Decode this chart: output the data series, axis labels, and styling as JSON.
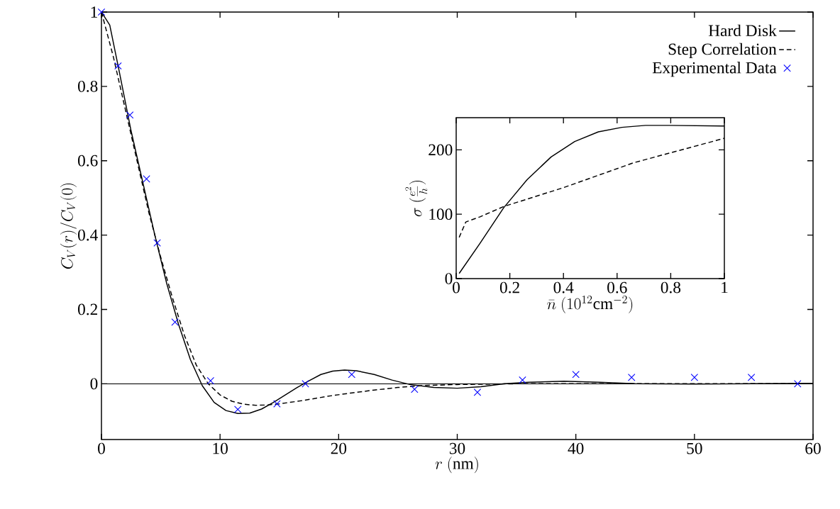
{
  "chart_data": [
    {
      "type": "line",
      "xlabel": "r\\ (\\mathrm{nm})",
      "ylabel": "C_V(r)/C_V(0)",
      "xlim": [
        0,
        60
      ],
      "ylim": [
        -0.15,
        1
      ],
      "xticks": [
        0,
        10,
        20,
        30,
        40,
        50,
        60
      ],
      "yticks": [
        0,
        0.2,
        0.4,
        0.6,
        0.8,
        1
      ],
      "legend": "top right",
      "ref_lines": [
        {
          "axis": "y",
          "value": 0,
          "color": "#000000"
        }
      ],
      "series": [
        {
          "name": "Hard Disk",
          "color": "#000000",
          "line_style": "solid",
          "x": [
            0,
            0.7,
            1.5,
            2.5,
            3.5,
            4.5,
            5.5,
            6.5,
            7.5,
            8.5,
            9.5,
            10.5,
            11.5,
            12.5,
            13.5,
            14.5,
            15.5,
            16.5,
            17.5,
            18.5,
            19.5,
            20.5,
            21.5,
            23,
            24.5,
            26,
            28,
            30,
            32,
            34,
            36,
            39,
            42,
            45,
            50,
            55,
            60
          ],
          "values": [
            1,
            0.965,
            0.84,
            0.68,
            0.54,
            0.4,
            0.27,
            0.16,
            0.065,
            -0.005,
            -0.05,
            -0.072,
            -0.08,
            -0.079,
            -0.068,
            -0.05,
            -0.03,
            -0.01,
            0.008,
            0.025,
            0.034,
            0.037,
            0.035,
            0.025,
            0.01,
            -0.002,
            -0.01,
            -0.012,
            -0.008,
            0,
            0.004,
            0.007,
            0.004,
            0,
            -0.001,
            0,
            0.001
          ]
        },
        {
          "name": "Step Correlation",
          "color": "#000000",
          "line_style": "dashed",
          "x": [
            0,
            1,
            2,
            3,
            4,
            5,
            6,
            7,
            8,
            9,
            10,
            11,
            12,
            13,
            14,
            15,
            17,
            19,
            21,
            23,
            25,
            27,
            30,
            35,
            60
          ],
          "values": [
            1,
            0.88,
            0.74,
            0.6,
            0.46,
            0.34,
            0.23,
            0.13,
            0.05,
            0.0,
            -0.03,
            -0.047,
            -0.055,
            -0.058,
            -0.057,
            -0.054,
            -0.045,
            -0.034,
            -0.025,
            -0.017,
            -0.01,
            -0.005,
            -0.002,
            0,
            0
          ]
        },
        {
          "name": "Experimental Data",
          "type": "scatter",
          "color": "#0000ff",
          "marker": "cross",
          "x": [
            0,
            1.4,
            2.4,
            3.8,
            4.7,
            6.2,
            9.2,
            11.5,
            14.8,
            17.2,
            21.1,
            26.4,
            31.7,
            35.5,
            40.0,
            44.7,
            50.0,
            54.8,
            58.7
          ],
          "values": [
            1.0,
            0.855,
            0.723,
            0.551,
            0.379,
            0.166,
            0.008,
            -0.069,
            -0.054,
            0.0,
            0.025,
            -0.015,
            -0.023,
            0.01,
            0.025,
            0.017,
            0.017,
            0.017,
            0.0
          ]
        }
      ]
    },
    {
      "type": "line",
      "xlabel": "\\bar{n}\\ (10^{12}\\mathrm{cm}^{-2})",
      "ylabel": "\\sigma\\ (\\frac{e^2}{h})",
      "xlim": [
        0,
        1
      ],
      "ylim": [
        0,
        250
      ],
      "xticks": [
        0,
        0.2,
        0.4,
        0.6,
        0.8,
        1
      ],
      "yticks": [
        0,
        100,
        200
      ],
      "series": [
        {
          "color": "#000000",
          "line_style": "solid",
          "x": [
            0.011,
            0.089,
            0.177,
            0.265,
            0.354,
            0.442,
            0.53,
            0.618,
            0.706,
            0.795,
            1.0
          ],
          "values": [
            8,
            55,
            110,
            154,
            189,
            213,
            228,
            235,
            238,
            238,
            237
          ]
        },
        {
          "color": "#000000",
          "line_style": "dashed",
          "x": [
            0.011,
            0.036,
            0.089,
            0.177,
            0.398,
            0.662,
            1.0
          ],
          "values": [
            64,
            88,
            96,
            112,
            141,
            180,
            218
          ]
        }
      ]
    }
  ]
}
